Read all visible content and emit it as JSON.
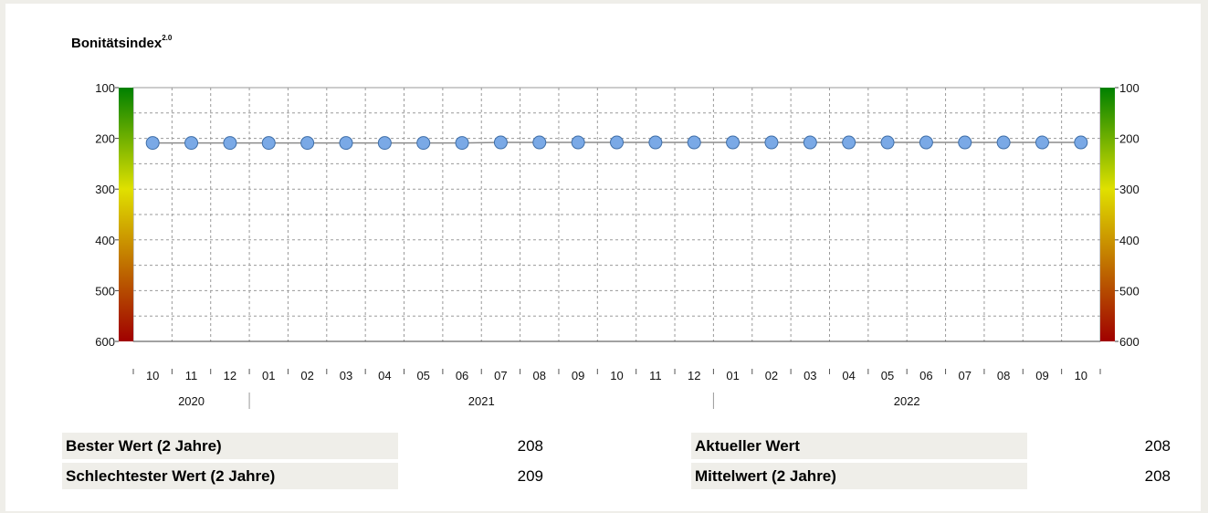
{
  "header": {
    "title": "Bonitätsindex",
    "title_sup": "2.0"
  },
  "chart_data": {
    "type": "line",
    "title": "Bonitätsindex 2.0",
    "y_axis": {
      "ticks": [
        100,
        200,
        300,
        400,
        500,
        600
      ],
      "range": [
        100,
        600
      ],
      "inverted": true
    },
    "x_months": [
      "10",
      "11",
      "12",
      "01",
      "02",
      "03",
      "04",
      "05",
      "06",
      "07",
      "08",
      "09",
      "10",
      "11",
      "12",
      "01",
      "02",
      "03",
      "04",
      "05",
      "06",
      "07",
      "08",
      "09",
      "10"
    ],
    "years": [
      "2020",
      "2021",
      "2022"
    ],
    "series": [
      {
        "values": [
          209,
          209,
          209,
          209,
          209,
          209,
          209,
          209,
          209,
          208,
          208,
          208,
          208,
          208,
          208,
          208,
          208,
          208,
          208,
          208,
          208,
          208,
          208,
          208,
          208
        ]
      }
    ],
    "grid": true,
    "colors": {
      "marker": "#7aa9e6",
      "marker_edge": "#3f6ea7",
      "line": "#8c8c8c",
      "scale_top": "#008000",
      "scale_mid": "#e0e000",
      "scale_bottom": "#a00000"
    }
  },
  "stats": {
    "left": [
      {
        "label": "Bester Wert (2 Jahre)",
        "value": "208"
      },
      {
        "label": "Schlechtester Wert (2 Jahre)",
        "value": "209"
      }
    ],
    "right": [
      {
        "label": "Aktueller Wert",
        "value": "208"
      },
      {
        "label": "Mittelwert (2 Jahre)",
        "value": "208"
      }
    ]
  }
}
